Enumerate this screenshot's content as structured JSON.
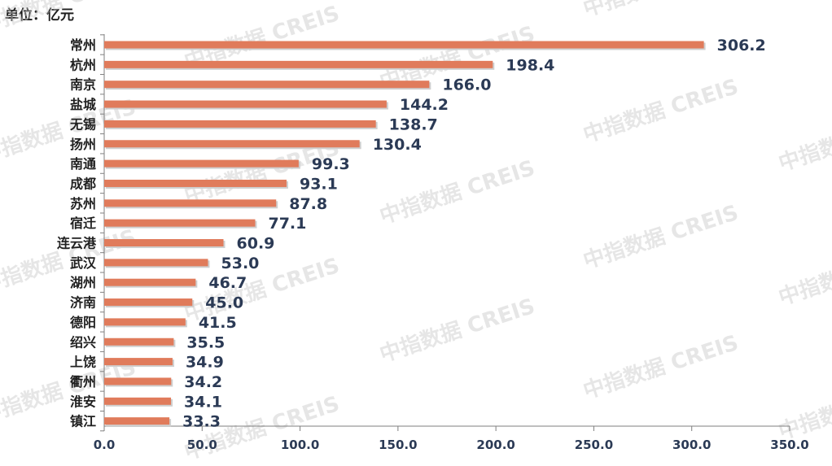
{
  "unit_label": "单位：亿元",
  "watermark": "中指数据 CREIS",
  "colors": {
    "bar": "#E07B5B",
    "bar_shadow": "#cfcfcf",
    "axis": "#7f7f7f",
    "text": "#2b3a55"
  },
  "chart_data": {
    "type": "bar",
    "orientation": "horizontal",
    "categories": [
      "常州",
      "杭州",
      "南京",
      "盐城",
      "无锡",
      "扬州",
      "南通",
      "成都",
      "苏州",
      "宿迁",
      "连云港",
      "武汉",
      "湖州",
      "济南",
      "德阳",
      "绍兴",
      "上饶",
      "衢州",
      "淮安",
      "镇江"
    ],
    "values": [
      306.2,
      198.4,
      166.0,
      144.2,
      138.7,
      130.4,
      99.3,
      93.1,
      87.8,
      77.1,
      60.9,
      53.0,
      46.7,
      45.0,
      41.5,
      35.5,
      34.9,
      34.2,
      34.1,
      33.3
    ],
    "value_labels": [
      "306.2",
      "198.4",
      "166.0",
      "144.2",
      "138.7",
      "130.4",
      "99.3",
      "93.1",
      "87.8",
      "77.1",
      "60.9",
      "53.0",
      "46.7",
      "45.0",
      "41.5",
      "35.5",
      "34.9",
      "34.2",
      "34.1",
      "33.3"
    ],
    "xlim": [
      0,
      350
    ],
    "x_ticks": [
      "0.0",
      "50.0",
      "100.0",
      "150.0",
      "200.0",
      "250.0",
      "300.0",
      "350.0"
    ],
    "ylabel_unit": "单位：亿元",
    "grid": false,
    "legend": "none"
  }
}
